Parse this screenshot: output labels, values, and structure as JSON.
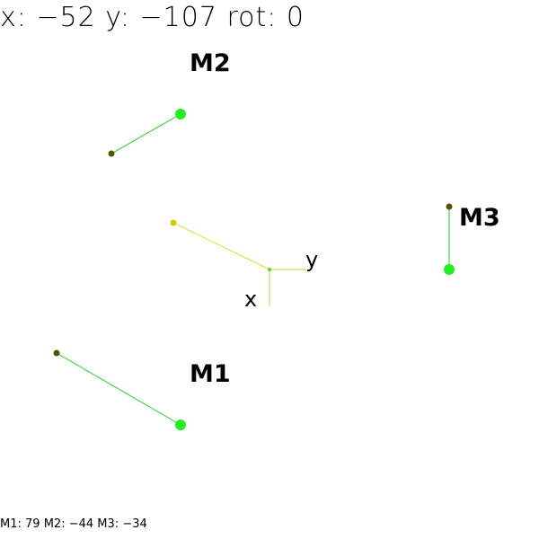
{
  "readout": {
    "x_label": "x:",
    "x_value": "−52",
    "y_label": "y:",
    "y_value": "−107",
    "rot_label": "rot:",
    "rot_value": "0"
  },
  "axes": {
    "x_label": "x",
    "y_label": "y"
  },
  "motors": [
    {
      "name": "M1",
      "value": "79"
    },
    {
      "name": "M2",
      "value": "−44"
    },
    {
      "name": "M3",
      "value": "−34"
    }
  ],
  "colors": {
    "arm_line": "#22cc22",
    "motor_dot": "#22ee22",
    "end_dot": "#555500",
    "center_arm": "#dddd22",
    "center_dot": "#cccc00",
    "axis_line": "#aadd44"
  }
}
